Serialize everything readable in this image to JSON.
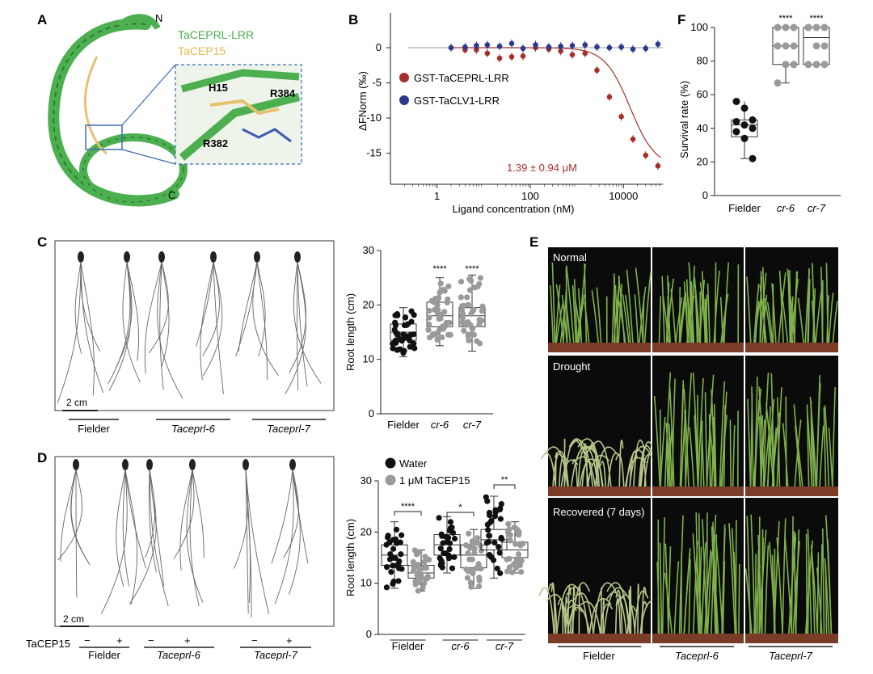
{
  "panels": {
    "A": "A",
    "B": "B",
    "C": "C",
    "D": "D",
    "E": "E",
    "F": "F"
  },
  "panel_a": {
    "n_term": "N",
    "c_term": "C",
    "protein_label": "TaCEPRL-LRR",
    "peptide_label": "TaCEP15",
    "residue_h15": "H15",
    "residue_r384": "R384",
    "residue_r382": "R382"
  },
  "panel_b": {
    "legend": [
      "GST-TaCEPRL-LRR",
      "GST-TaCLV1-LRR"
    ],
    "kd_label": "1.39 ± 0.94 μM",
    "xlabel": "Ligand concentration (nM)",
    "ylabel": "ΔFNorm (‰)"
  },
  "panel_c": {
    "scale": "2 cm",
    "genotypes": [
      "Fielder",
      "Taceprl-6",
      "Taceprl-7"
    ],
    "ylabel": "Root length (cm)",
    "xcats": [
      "Fielder",
      "cr-6",
      "cr-7"
    ],
    "sig": [
      "****",
      "****"
    ]
  },
  "panel_d": {
    "scale": "2 cm",
    "treatment_label": "TaCEP15",
    "signs": [
      "−",
      "+",
      "−",
      "+",
      "−",
      "+"
    ],
    "genotypes": [
      "Fielder",
      "Taceprl-6",
      "Taceprl-7"
    ],
    "legend": [
      "Water",
      "1 μM TaCEP15"
    ],
    "ylabel": "Root length (cm)",
    "xcats": [
      "Fielder",
      "cr-6",
      "cr-7"
    ],
    "sig": [
      "****",
      "*",
      "**"
    ]
  },
  "panel_e": {
    "conditions": [
      "Normal",
      "Drought",
      "Recovered (7 days)"
    ],
    "genotypes": [
      "Fielder",
      "Taceprl-6",
      "Taceprl-7"
    ]
  },
  "panel_f": {
    "ylabel": "Survival rate (%)",
    "xcats": [
      "Fielder",
      "cr-6",
      "cr-7"
    ],
    "sig": [
      "****",
      "****"
    ]
  },
  "colors": {
    "binder": "#a5302b",
    "nonbinder": "#2b3a8c",
    "protein": "#4caf50",
    "peptide": "#e8c170",
    "water": "#111111",
    "tacep15": "#9a9a9a"
  },
  "chart_data": [
    {
      "type": "scatter",
      "panel": "B",
      "xlabel": "Ligand concentration (nM)",
      "ylabel": "ΔFNorm (‰)",
      "xscale": "log",
      "xlim": [
        0.1,
        70000
      ],
      "ylim": [
        -18,
        5
      ],
      "xticks": [
        1,
        100,
        10000
      ],
      "yticks": [
        0,
        -5,
        -10,
        -15
      ],
      "series": [
        {
          "name": "GST-TaCEPRL-LRR",
          "x": [
            2,
            4,
            7,
            12,
            22,
            40,
            70,
            130,
            250,
            450,
            800,
            1500,
            2700,
            5000,
            9000,
            16000,
            30000,
            55000
          ],
          "y": [
            0,
            -0.3,
            -0.3,
            -0.8,
            -1.5,
            -1.3,
            -1.2,
            0,
            -0.2,
            -0.5,
            -1.0,
            -0.8,
            -3.2,
            -7,
            -9.8,
            -13,
            -15.3,
            -16.8
          ]
        },
        {
          "name": "GST-TaCLV1-LRR",
          "x": [
            2,
            4,
            7,
            12,
            22,
            40,
            70,
            130,
            250,
            450,
            800,
            1500,
            2700,
            5000,
            9000,
            16000,
            30000,
            55000
          ],
          "y": [
            0,
            0.1,
            0.3,
            0.4,
            0.2,
            0.6,
            -0.1,
            0.4,
            0.1,
            0.2,
            0.3,
            0.4,
            0.1,
            0,
            0.1,
            -0.2,
            -0.1,
            0.5
          ]
        }
      ],
      "annotation": "1.39 ± 0.94 μM"
    },
    {
      "type": "box",
      "panel": "C",
      "ylabel": "Root length (cm)",
      "ylim": [
        0,
        30
      ],
      "yticks": [
        0,
        10,
        20,
        30
      ],
      "categories": [
        "Fielder",
        "cr-6",
        "cr-7"
      ],
      "series": [
        {
          "min": 10.5,
          "q1": 13.5,
          "median": 15,
          "q3": 16.5,
          "max": 19.5
        },
        {
          "min": 12.5,
          "q1": 16,
          "median": 18,
          "q3": 20.5,
          "max": 25
        },
        {
          "min": 11.5,
          "q1": 16,
          "median": 18,
          "q3": 19.5,
          "max": 25.5
        }
      ]
    },
    {
      "type": "box",
      "panel": "D",
      "ylabel": "Root length (cm)",
      "ylim": [
        0,
        30
      ],
      "yticks": [
        0,
        10,
        20,
        30
      ],
      "categories": [
        "Fielder",
        "cr-6",
        "cr-7"
      ],
      "series": [
        {
          "name": "Water",
          "values": [
            {
              "min": 9,
              "q1": 13.5,
              "median": 15.5,
              "q3": 17.5,
              "max": 22
            },
            {
              "min": 12,
              "q1": 15.5,
              "median": 17.5,
              "q3": 19.5,
              "max": 23
            },
            {
              "min": 11,
              "q1": 16.5,
              "median": 18.5,
              "q3": 20.5,
              "max": 27
            }
          ]
        },
        {
          "name": "1 μM TaCEP15",
          "values": [
            {
              "min": 8.5,
              "q1": 11,
              "median": 12,
              "q3": 13.5,
              "max": 16.5
            },
            {
              "min": 9,
              "q1": 13,
              "median": 15.5,
              "q3": 17.5,
              "max": 20.5
            },
            {
              "min": 12,
              "q1": 15,
              "median": 16.5,
              "q3": 18,
              "max": 22
            }
          ]
        }
      ]
    },
    {
      "type": "box",
      "panel": "F",
      "ylabel": "Survival rate (%)",
      "ylim": [
        0,
        100
      ],
      "yticks": [
        0,
        20,
        40,
        60,
        80,
        100
      ],
      "categories": [
        "Fielder",
        "cr-6",
        "cr-7"
      ],
      "series": [
        {
          "min": 22,
          "q1": 35,
          "median": 42,
          "q3": 45,
          "max": 56
        },
        {
          "min": 67,
          "q1": 78,
          "median": 89,
          "q3": 100,
          "max": 100
        },
        {
          "min": 78,
          "q1": 78,
          "median": 94,
          "q3": 100,
          "max": 100
        }
      ]
    }
  ]
}
